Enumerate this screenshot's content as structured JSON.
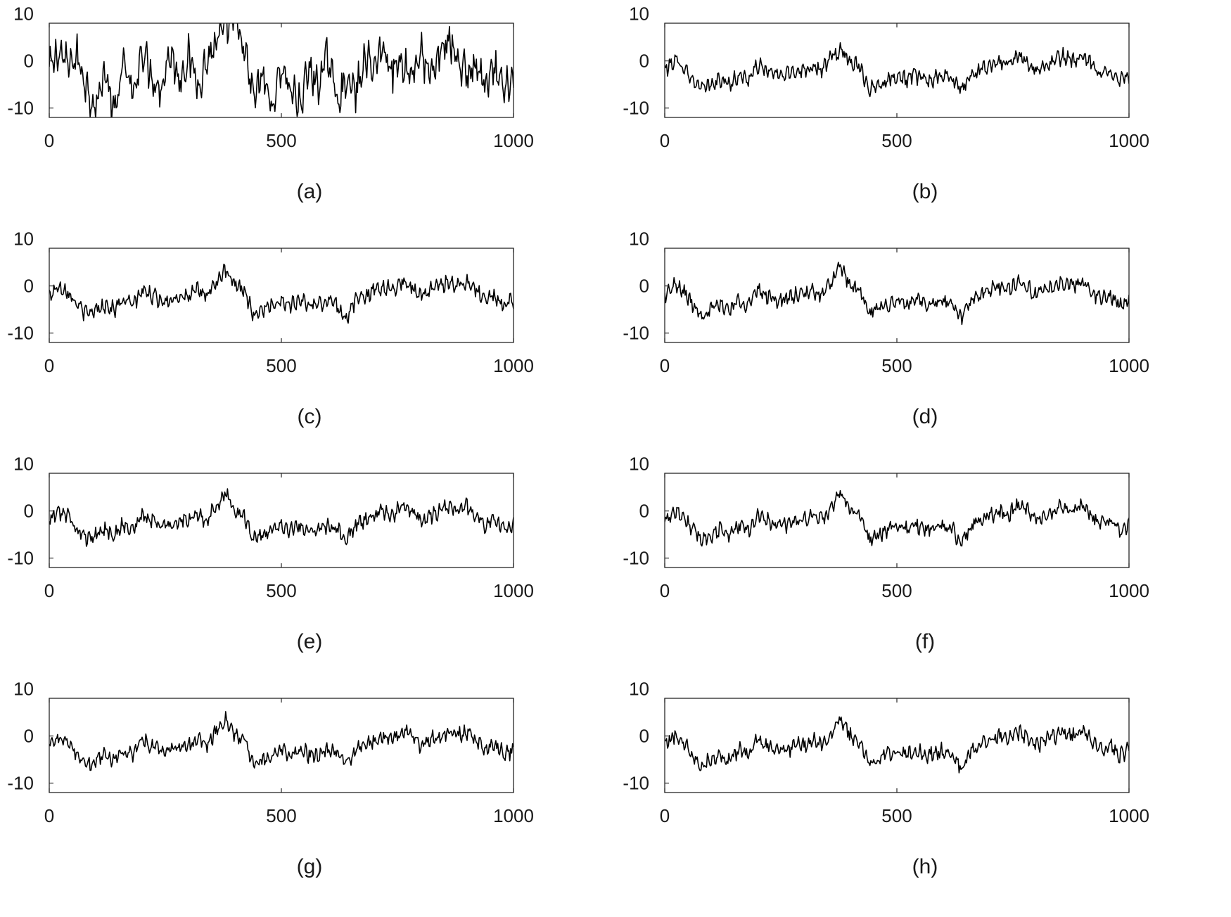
{
  "figure": {
    "description_labels": [
      "(a)",
      "(b)",
      "(c)",
      "(d)",
      "(e)",
      "(f)",
      "(g)",
      "(h)"
    ]
  },
  "chart_data": [
    {
      "type": "line",
      "label": "(a)",
      "noisy": true,
      "xlim": [
        0,
        1000
      ],
      "ylim": [
        -12,
        8
      ],
      "xticks": [
        0,
        500,
        1000
      ],
      "yticks": [
        10,
        0,
        -10
      ],
      "xtick_labels": [
        "0",
        "500",
        "1000"
      ],
      "ytick_labels": [
        "10",
        "0",
        "-10"
      ],
      "series": [
        {
          "name": "signal",
          "color": "#000000",
          "x": [
            0,
            20,
            40,
            60,
            80,
            100,
            120,
            140,
            160,
            180,
            200,
            220,
            240,
            260,
            280,
            300,
            320,
            340,
            360,
            380,
            400,
            420,
            440,
            460,
            480,
            500,
            520,
            540,
            560,
            580,
            600,
            620,
            640,
            660,
            680,
            700,
            720,
            740,
            760,
            780,
            800,
            820,
            840,
            860,
            880,
            900,
            920,
            940,
            960,
            980,
            1000
          ],
          "y": [
            -2,
            2,
            -1,
            1,
            -5,
            -10,
            -2,
            -12,
            0,
            -8,
            3,
            -3,
            -6,
            2,
            -4,
            1,
            -5,
            0,
            4,
            7,
            9,
            2,
            -8,
            -3,
            -10,
            -1,
            -6,
            -9,
            -2,
            -5,
            1,
            -8,
            -4,
            -7,
            0,
            -1,
            3,
            -2,
            0,
            -3,
            2,
            -4,
            1,
            5,
            0,
            -3,
            -1,
            -6,
            -2,
            -7,
            -3
          ]
        }
      ]
    },
    {
      "type": "line",
      "label": "(b)",
      "xlim": [
        0,
        1000
      ],
      "ylim": [
        -12,
        8
      ],
      "xticks": [
        0,
        500,
        1000
      ],
      "yticks": [
        10,
        0,
        -10
      ],
      "xtick_labels": [
        "0",
        "500",
        "1000"
      ],
      "ytick_labels": [
        "10",
        "0",
        "-10"
      ],
      "series": [
        {
          "name": "signal",
          "color": "#000000",
          "x": [
            0,
            20,
            40,
            60,
            80,
            100,
            120,
            140,
            160,
            180,
            200,
            220,
            240,
            260,
            280,
            300,
            320,
            340,
            360,
            380,
            400,
            420,
            440,
            460,
            480,
            500,
            520,
            540,
            560,
            580,
            600,
            620,
            640,
            660,
            680,
            700,
            720,
            740,
            760,
            780,
            800,
            820,
            840,
            860,
            880,
            900,
            920,
            940,
            960,
            980,
            1000
          ],
          "y": [
            -2,
            0,
            -1,
            -4,
            -6,
            -5,
            -4,
            -5,
            -3,
            -4,
            -1,
            -2,
            -3,
            -3,
            -2,
            -2,
            -1,
            -2,
            1,
            2,
            0,
            -1,
            -6,
            -5,
            -4,
            -3,
            -4,
            -3,
            -4,
            -4,
            -3,
            -4,
            -6,
            -3,
            -2,
            -1,
            0,
            -1,
            1,
            0,
            -2,
            -1,
            0,
            1,
            0,
            1,
            -1,
            -3,
            -2,
            -4,
            -3
          ]
        }
      ]
    },
    {
      "type": "line",
      "label": "(c)",
      "xlim": [
        0,
        1000
      ],
      "ylim": [
        -12,
        8
      ],
      "xticks": [
        0,
        500,
        1000
      ],
      "yticks": [
        10,
        0,
        -10
      ],
      "xtick_labels": [
        "0",
        "500",
        "1000"
      ],
      "ytick_labels": [
        "10",
        "0",
        "-10"
      ],
      "series": [
        {
          "name": "signal",
          "color": "#000000",
          "x": [
            0,
            20,
            40,
            60,
            80,
            100,
            120,
            140,
            160,
            180,
            200,
            220,
            240,
            260,
            280,
            300,
            320,
            340,
            360,
            380,
            400,
            420,
            440,
            460,
            480,
            500,
            520,
            540,
            560,
            580,
            600,
            620,
            640,
            660,
            680,
            700,
            720,
            740,
            760,
            780,
            800,
            820,
            840,
            860,
            880,
            900,
            920,
            940,
            960,
            980,
            1000
          ],
          "y": [
            -2,
            0,
            -1,
            -4,
            -6,
            -5,
            -4,
            -5,
            -3,
            -4,
            -1,
            -2,
            -3,
            -3,
            -2,
            -2,
            -1,
            -2,
            1,
            3,
            0,
            -1,
            -6,
            -5,
            -4,
            -3,
            -4,
            -3,
            -4,
            -4,
            -3,
            -4,
            -7,
            -3,
            -2,
            -1,
            0,
            -1,
            1,
            0,
            -2,
            -1,
            0,
            1,
            0,
            1,
            -1,
            -3,
            -2,
            -4,
            -3
          ]
        }
      ]
    },
    {
      "type": "line",
      "label": "(d)",
      "xlim": [
        0,
        1000
      ],
      "ylim": [
        -12,
        8
      ],
      "xticks": [
        0,
        500,
        1000
      ],
      "yticks": [
        10,
        0,
        -10
      ],
      "xtick_labels": [
        "0",
        "500",
        "1000"
      ],
      "ytick_labels": [
        "10",
        "0",
        "-10"
      ],
      "series": [
        {
          "name": "signal",
          "color": "#000000",
          "x": [
            0,
            20,
            40,
            60,
            80,
            100,
            120,
            140,
            160,
            180,
            200,
            220,
            240,
            260,
            280,
            300,
            320,
            340,
            360,
            380,
            400,
            420,
            440,
            460,
            480,
            500,
            520,
            540,
            560,
            580,
            600,
            620,
            640,
            660,
            680,
            700,
            720,
            740,
            760,
            780,
            800,
            820,
            840,
            860,
            880,
            900,
            920,
            940,
            960,
            980,
            1000
          ],
          "y": [
            -2,
            0,
            -1,
            -4,
            -6,
            -5,
            -4,
            -5,
            -3,
            -4,
            -1,
            -2,
            -3,
            -3,
            -2,
            -2,
            -1,
            -2,
            1,
            4,
            0,
            -1,
            -6,
            -5,
            -4,
            -3,
            -4,
            -3,
            -4,
            -4,
            -3,
            -4,
            -7,
            -3,
            -2,
            -1,
            0,
            -1,
            1,
            0,
            -2,
            -1,
            0,
            1,
            0,
            1,
            -1,
            -3,
            -2,
            -4,
            -3
          ]
        }
      ]
    },
    {
      "type": "line",
      "label": "(e)",
      "xlim": [
        0,
        1000
      ],
      "ylim": [
        -12,
        8
      ],
      "xticks": [
        0,
        500,
        1000
      ],
      "yticks": [
        10,
        0,
        -10
      ],
      "xtick_labels": [
        "0",
        "500",
        "1000"
      ],
      "ytick_labels": [
        "10",
        "0",
        "-10"
      ],
      "series": [
        {
          "name": "signal",
          "color": "#000000",
          "x": [
            0,
            20,
            40,
            60,
            80,
            100,
            120,
            140,
            160,
            180,
            200,
            220,
            240,
            260,
            280,
            300,
            320,
            340,
            360,
            380,
            400,
            420,
            440,
            460,
            480,
            500,
            520,
            540,
            560,
            580,
            600,
            620,
            640,
            660,
            680,
            700,
            720,
            740,
            760,
            780,
            800,
            820,
            840,
            860,
            880,
            900,
            920,
            940,
            960,
            980,
            1000
          ],
          "y": [
            -2,
            0,
            -1,
            -4,
            -6,
            -5,
            -4,
            -5,
            -3,
            -4,
            -1,
            -2,
            -3,
            -3,
            -2,
            -2,
            -1,
            -2,
            1,
            4,
            0,
            -1,
            -6,
            -5,
            -4,
            -3,
            -4,
            -3,
            -4,
            -4,
            -3,
            -4,
            -6,
            -3,
            -2,
            -1,
            0,
            -1,
            1,
            0,
            -2,
            -1,
            0,
            1,
            0,
            1,
            -1,
            -3,
            -2,
            -4,
            -3
          ]
        }
      ]
    },
    {
      "type": "line",
      "label": "(f)",
      "xlim": [
        0,
        1000
      ],
      "ylim": [
        -12,
        8
      ],
      "xticks": [
        0,
        500,
        1000
      ],
      "yticks": [
        10,
        0,
        -10
      ],
      "xtick_labels": [
        "0",
        "500",
        "1000"
      ],
      "ytick_labels": [
        "10",
        "0",
        "-10"
      ],
      "series": [
        {
          "name": "signal",
          "color": "#000000",
          "x": [
            0,
            20,
            40,
            60,
            80,
            100,
            120,
            140,
            160,
            180,
            200,
            220,
            240,
            260,
            280,
            300,
            320,
            340,
            360,
            380,
            400,
            420,
            440,
            460,
            480,
            500,
            520,
            540,
            560,
            580,
            600,
            620,
            640,
            660,
            680,
            700,
            720,
            740,
            760,
            780,
            800,
            820,
            840,
            860,
            880,
            900,
            920,
            940,
            960,
            980,
            1000
          ],
          "y": [
            -2,
            0,
            -1,
            -4,
            -6,
            -5,
            -4,
            -5,
            -3,
            -4,
            -1,
            -2,
            -3,
            -3,
            -2,
            -2,
            -1,
            -2,
            1,
            4,
            0,
            -1,
            -6,
            -5,
            -4,
            -3,
            -4,
            -3,
            -4,
            -4,
            -3,
            -4,
            -7,
            -3,
            -2,
            -1,
            0,
            -1,
            1,
            0,
            -2,
            -1,
            0,
            1,
            0,
            1,
            -1,
            -3,
            -2,
            -4,
            -3
          ]
        }
      ]
    },
    {
      "type": "line",
      "label": "(g)",
      "xlim": [
        0,
        1000
      ],
      "ylim": [
        -12,
        8
      ],
      "xticks": [
        0,
        500,
        1000
      ],
      "yticks": [
        10,
        0,
        -10
      ],
      "xtick_labels": [
        "0",
        "500",
        "1000"
      ],
      "ytick_labels": [
        "10",
        "0",
        "-10"
      ],
      "series": [
        {
          "name": "signal",
          "color": "#000000",
          "x": [
            0,
            20,
            40,
            60,
            80,
            100,
            120,
            140,
            160,
            180,
            200,
            220,
            240,
            260,
            280,
            300,
            320,
            340,
            360,
            380,
            400,
            420,
            440,
            460,
            480,
            500,
            520,
            540,
            560,
            580,
            600,
            620,
            640,
            660,
            680,
            700,
            720,
            740,
            760,
            780,
            800,
            820,
            840,
            860,
            880,
            900,
            920,
            940,
            960,
            980,
            1000
          ],
          "y": [
            -2,
            0,
            -1,
            -4,
            -6,
            -5,
            -4,
            -5,
            -3,
            -4,
            -1,
            -2,
            -3,
            -3,
            -2,
            -2,
            -1,
            -2,
            1,
            4,
            0,
            -1,
            -6,
            -5,
            -4,
            -3,
            -4,
            -3,
            -4,
            -4,
            -3,
            -4,
            -6,
            -3,
            -2,
            -1,
            0,
            -1,
            1,
            0,
            -2,
            -1,
            0,
            1,
            0,
            1,
            -1,
            -3,
            -2,
            -4,
            -3
          ]
        }
      ]
    },
    {
      "type": "line",
      "label": "(h)",
      "xlim": [
        0,
        1000
      ],
      "ylim": [
        -12,
        8
      ],
      "xticks": [
        0,
        500,
        1000
      ],
      "yticks": [
        10,
        0,
        -10
      ],
      "xtick_labels": [
        "0",
        "500",
        "1000"
      ],
      "ytick_labels": [
        "10",
        "0",
        "-10"
      ],
      "series": [
        {
          "name": "signal",
          "color": "#000000",
          "x": [
            0,
            20,
            40,
            60,
            80,
            100,
            120,
            140,
            160,
            180,
            200,
            220,
            240,
            260,
            280,
            300,
            320,
            340,
            360,
            380,
            400,
            420,
            440,
            460,
            480,
            500,
            520,
            540,
            560,
            580,
            600,
            620,
            640,
            660,
            680,
            700,
            720,
            740,
            760,
            780,
            800,
            820,
            840,
            860,
            880,
            900,
            920,
            940,
            960,
            980,
            1000
          ],
          "y": [
            -2,
            0,
            -1,
            -4,
            -6,
            -5,
            -4,
            -5,
            -3,
            -4,
            -1,
            -2,
            -3,
            -3,
            -2,
            -2,
            -1,
            -2,
            1,
            4,
            0,
            -1,
            -6,
            -5,
            -4,
            -3,
            -4,
            -3,
            -4,
            -4,
            -3,
            -4,
            -7,
            -3,
            -2,
            -1,
            0,
            -1,
            1,
            0,
            -2,
            -1,
            0,
            1,
            0,
            1,
            -1,
            -3,
            -2,
            -4,
            -3
          ]
        }
      ]
    }
  ]
}
